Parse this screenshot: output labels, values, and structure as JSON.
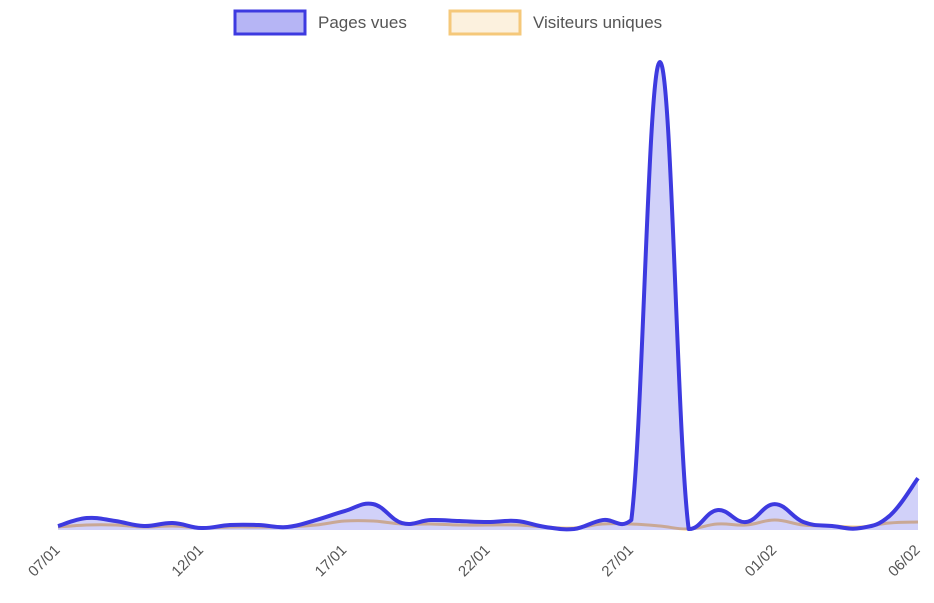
{
  "chart_data": {
    "type": "line",
    "title": "",
    "xlabel": "",
    "ylabel": "",
    "x": [
      "07/01",
      "08/01",
      "09/01",
      "10/01",
      "11/01",
      "12/01",
      "13/01",
      "14/01",
      "15/01",
      "16/01",
      "17/01",
      "18/01",
      "19/01",
      "20/01",
      "21/01",
      "22/01",
      "23/01",
      "24/01",
      "25/01",
      "26/01",
      "27/01",
      "28/01",
      "29/01",
      "30/01",
      "31/01",
      "01/02",
      "02/02",
      "03/02",
      "04/02",
      "05/02",
      "06/02"
    ],
    "x_tick_labels": [
      "07/01",
      "12/01",
      "17/01",
      "22/01",
      "27/01",
      "01/02",
      "06/02"
    ],
    "x_tick_indices": [
      0,
      5,
      10,
      15,
      20,
      25,
      30
    ],
    "ylim": [
      0,
      480
    ],
    "grid": false,
    "legend_position": "top-center",
    "series": [
      {
        "name": "Pages vues",
        "color": "#3d3ae0",
        "fill": "rgba(72, 70, 230, 0.25)",
        "filled": true,
        "values": [
          4,
          12,
          9,
          4,
          7,
          2,
          5,
          5,
          3,
          10,
          19,
          26,
          7,
          10,
          9,
          8,
          9,
          3,
          1,
          10,
          10,
          470,
          1,
          20,
          8,
          26,
          8,
          4,
          2,
          14,
          52
        ]
      },
      {
        "name": "Visiteurs uniques",
        "color": "#f5c87a",
        "fill": "rgba(245, 200, 122, 0.2)",
        "filled": false,
        "values": [
          3,
          5,
          5,
          3,
          4,
          2,
          3,
          3,
          3,
          5,
          9,
          9,
          6,
          6,
          5,
          5,
          5,
          3,
          2,
          6,
          6,
          4,
          1,
          6,
          5,
          10,
          5,
          4,
          3,
          7,
          8
        ]
      }
    ]
  }
}
